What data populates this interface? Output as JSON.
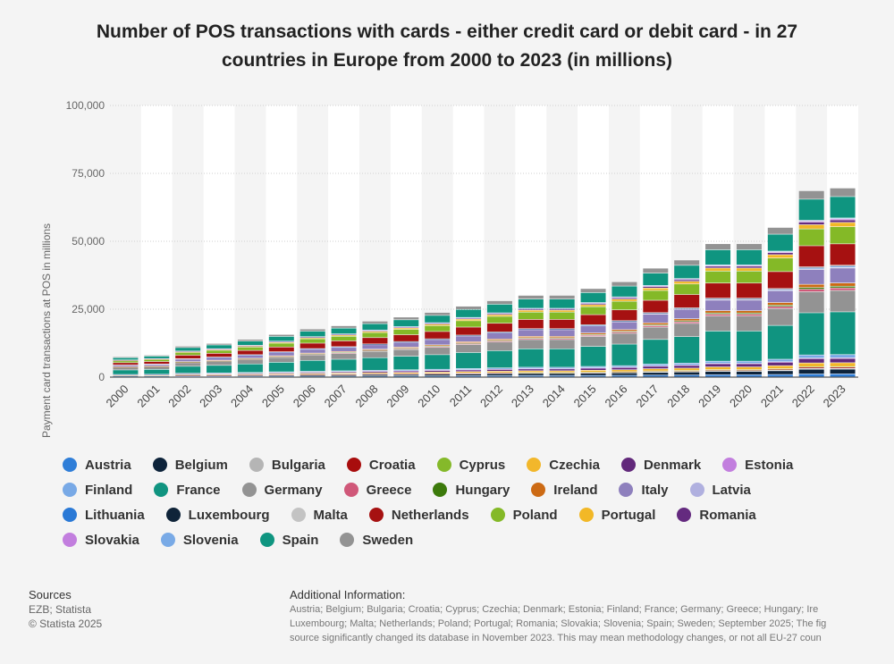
{
  "chart_data": {
    "type": "bar",
    "stacked": true,
    "title_line1": "Number of POS transactions with cards - either credit card or debit card - in 27",
    "title_line2": "countries in Europe from 2000 to 2023 (in millions)",
    "ylabel": "Payment card transactions at POS in millions",
    "ylim": [
      0,
      100000
    ],
    "yticks": [
      0,
      25000,
      50000,
      75000,
      100000
    ],
    "ytick_labels": [
      "0",
      "25,000",
      "50,000",
      "75,000",
      "100,000"
    ],
    "grid": true,
    "legend_position": "bottom",
    "categories": [
      "2000",
      "2001",
      "2002",
      "2003",
      "2004",
      "2005",
      "2006",
      "2007",
      "2008",
      "2009",
      "2010",
      "2011",
      "2012",
      "2013",
      "2014",
      "2015",
      "2016",
      "2017",
      "2018",
      "2019",
      "2020",
      "2021",
      "2022",
      "2023"
    ],
    "totals": [
      7400,
      8000,
      11300,
      12300,
      13800,
      15600,
      17600,
      18800,
      20500,
      22000,
      23700,
      26000,
      28000,
      30000,
      30000,
      32500,
      35000,
      40000,
      43000,
      49000,
      49000,
      55000,
      68500,
      69500
    ],
    "series": [
      {
        "name": "Austria",
        "color": "#2f7ed8",
        "share": 0.014
      },
      {
        "name": "Belgium",
        "color": "#0d233a",
        "share": 0.022
      },
      {
        "name": "Bulgaria",
        "color": "#b5b5b5",
        "share": 0.004
      },
      {
        "name": "Croatia",
        "color": "#a80d0d",
        "share": 0.006
      },
      {
        "name": "Cyprus",
        "color": "#85b92a",
        "share": 0.002
      },
      {
        "name": "Czechia",
        "color": "#f2b72b",
        "share": 0.018
      },
      {
        "name": "Denmark",
        "color": "#62297b",
        "share": 0.02
      },
      {
        "name": "Estonia",
        "color": "#c27ede",
        "share": 0.003
      },
      {
        "name": "Finland",
        "color": "#78a9e6",
        "share": 0.015
      },
      {
        "name": "France",
        "color": "#109480",
        "share": 0.2
      },
      {
        "name": "Germany",
        "color": "#939393",
        "share": 0.1
      },
      {
        "name": "Greece",
        "color": "#d05879",
        "share": 0.012
      },
      {
        "name": "Hungary",
        "color": "#3c7a0b",
        "share": 0.008
      },
      {
        "name": "Ireland",
        "color": "#cc6a14",
        "share": 0.015
      },
      {
        "name": "Italy",
        "color": "#8e80bd",
        "share": 0.07
      },
      {
        "name": "Latvia",
        "color": "#b0b0df",
        "share": 0.004
      },
      {
        "name": "Lithuania",
        "color": "#2a79d6",
        "share": 0.005
      },
      {
        "name": "Luxembourg",
        "color": "#0f2439",
        "share": 0.003
      },
      {
        "name": "Malta",
        "color": "#c3c3c3",
        "share": 0.001
      },
      {
        "name": "Netherlands",
        "color": "#a61111",
        "share": 0.1
      },
      {
        "name": "Poland",
        "color": "#84b927",
        "share": 0.08
      },
      {
        "name": "Portugal",
        "color": "#f2b827",
        "share": 0.02
      },
      {
        "name": "Romania",
        "color": "#642a7f",
        "share": 0.012
      },
      {
        "name": "Slovakia",
        "color": "#c27ede",
        "share": 0.005
      },
      {
        "name": "Slovenia",
        "color": "#79aae6",
        "share": 0.004
      },
      {
        "name": "Spain",
        "color": "#0f9580",
        "share": 0.1
      },
      {
        "name": "Sweden",
        "color": "#939393",
        "share": 0.04
      }
    ]
  },
  "footer": {
    "sources_heading": "Sources",
    "sources_line1": "EZB; Statista",
    "sources_line2": "© Statista 2025",
    "info_heading": "Additional Information:",
    "info_line1": "Austria; Belgium; Bulgaria; Croatia; Cyprus; Czechia; Denmark; Estonia; Finland; France; Germany; Greece; Hungary; Ire",
    "info_line2": "Luxembourg; Malta; Netherlands; Poland; Portugal; Romania; Slovakia; Slovenia; Spain; Sweden; September 2025; The fig",
    "info_line3": "source significantly changed its database in November 2023. This may mean methodology changes, or not all EU-27 coun"
  }
}
